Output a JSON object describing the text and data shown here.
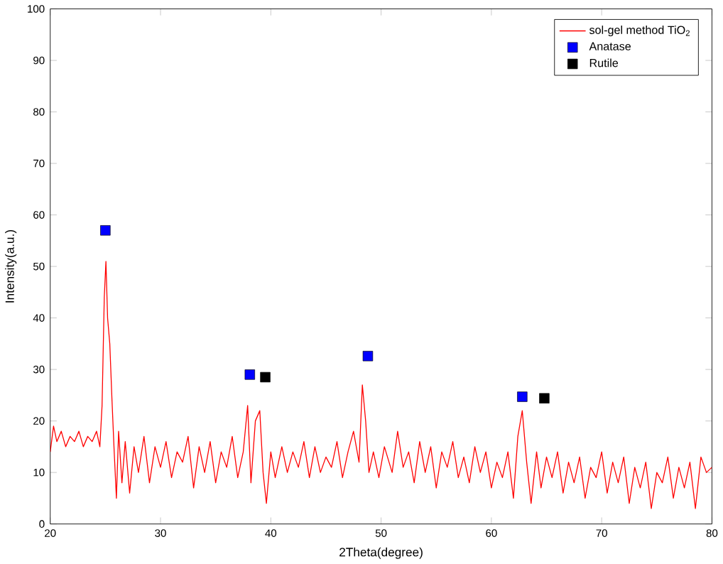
{
  "chart_data": {
    "type": "line",
    "xlabel": "2Theta(degree)",
    "ylabel": "Intensity(a.u.)",
    "xlim": [
      20,
      80
    ],
    "xticks": [
      20,
      30,
      40,
      50,
      60,
      70,
      80
    ],
    "ylim": [
      0,
      100
    ],
    "yticks": [
      0,
      10,
      20,
      30,
      40,
      50,
      60,
      70,
      80,
      90,
      100
    ],
    "legend": "top right",
    "grid": false,
    "series": [
      {
        "name": "sol-gel method TiO$_{2}$",
        "color": "#ff0000",
        "marker": "none",
        "x": [
          20,
          20.3,
          20.6,
          21,
          21.4,
          21.8,
          22.2,
          22.6,
          23,
          23.4,
          23.8,
          24.2,
          24.5,
          24.7,
          24.9,
          25.05,
          25.2,
          25.4,
          25.6,
          25.8,
          26.0,
          26.2,
          26.5,
          26.8,
          27.2,
          27.6,
          28,
          28.5,
          29,
          29.5,
          30,
          30.5,
          31,
          31.5,
          32,
          32.5,
          33,
          33.5,
          34,
          34.5,
          35,
          35.5,
          36,
          36.5,
          37,
          37.5,
          37.9,
          38.2,
          38.6,
          39.0,
          39.3,
          39.6,
          40.0,
          40.4,
          41,
          41.5,
          42,
          42.5,
          43,
          43.5,
          44,
          44.5,
          45,
          45.5,
          46,
          46.5,
          47,
          47.5,
          48,
          48.3,
          48.6,
          48.9,
          49.3,
          49.8,
          50.3,
          51,
          51.5,
          52,
          52.5,
          53,
          53.5,
          54,
          54.5,
          55,
          55.5,
          56,
          56.5,
          57,
          57.5,
          58,
          58.5,
          59,
          59.5,
          60,
          60.5,
          61,
          61.5,
          62,
          62.4,
          62.8,
          63.2,
          63.6,
          64.1,
          64.5,
          65,
          65.5,
          66,
          66.5,
          67,
          67.5,
          68,
          68.5,
          69,
          69.5,
          70,
          70.5,
          71,
          71.5,
          72,
          72.5,
          73,
          73.5,
          74,
          74.5,
          75,
          75.5,
          76,
          76.5,
          77,
          77.5,
          78,
          78.5,
          79,
          79.5,
          80
        ],
        "values": [
          14,
          19,
          16,
          18,
          15,
          17,
          16,
          18,
          15,
          17,
          16,
          18,
          15,
          23,
          44,
          51,
          40,
          35,
          24,
          14,
          5,
          18,
          8,
          16,
          6,
          15,
          10,
          17,
          8,
          15,
          11,
          16,
          9,
          14,
          12,
          17,
          7,
          15,
          10,
          16,
          8,
          14,
          11,
          17,
          9,
          14,
          23,
          8,
          20,
          22,
          10,
          4,
          14,
          9,
          15,
          10,
          14,
          11,
          16,
          9,
          15,
          10,
          13,
          11,
          16,
          9,
          14,
          18,
          12,
          27,
          20,
          10,
          14,
          9,
          15,
          10,
          18,
          11,
          14,
          8,
          16,
          10,
          15,
          7,
          14,
          11,
          16,
          9,
          13,
          8,
          15,
          10,
          14,
          7,
          12,
          9,
          14,
          5,
          17,
          22,
          12,
          4,
          14,
          7,
          13,
          9,
          14,
          6,
          12,
          8,
          13,
          5,
          11,
          9,
          14,
          6,
          12,
          8,
          13,
          4,
          11,
          7,
          12,
          3,
          10,
          8,
          13,
          5,
          11,
          7,
          12,
          3,
          13,
          10,
          11
        ]
      },
      {
        "name": "Anatase",
        "type": "scatter",
        "color": "#0000ff",
        "marker": "square",
        "x": [
          25,
          38.1,
          48.8,
          62.8
        ],
        "values": [
          57,
          29,
          32.6,
          24.7
        ]
      },
      {
        "name": "Rutile",
        "type": "scatter",
        "color": "#000000",
        "marker": "square",
        "x": [
          39.5,
          64.8
        ],
        "values": [
          28.5,
          24.4
        ]
      }
    ]
  }
}
